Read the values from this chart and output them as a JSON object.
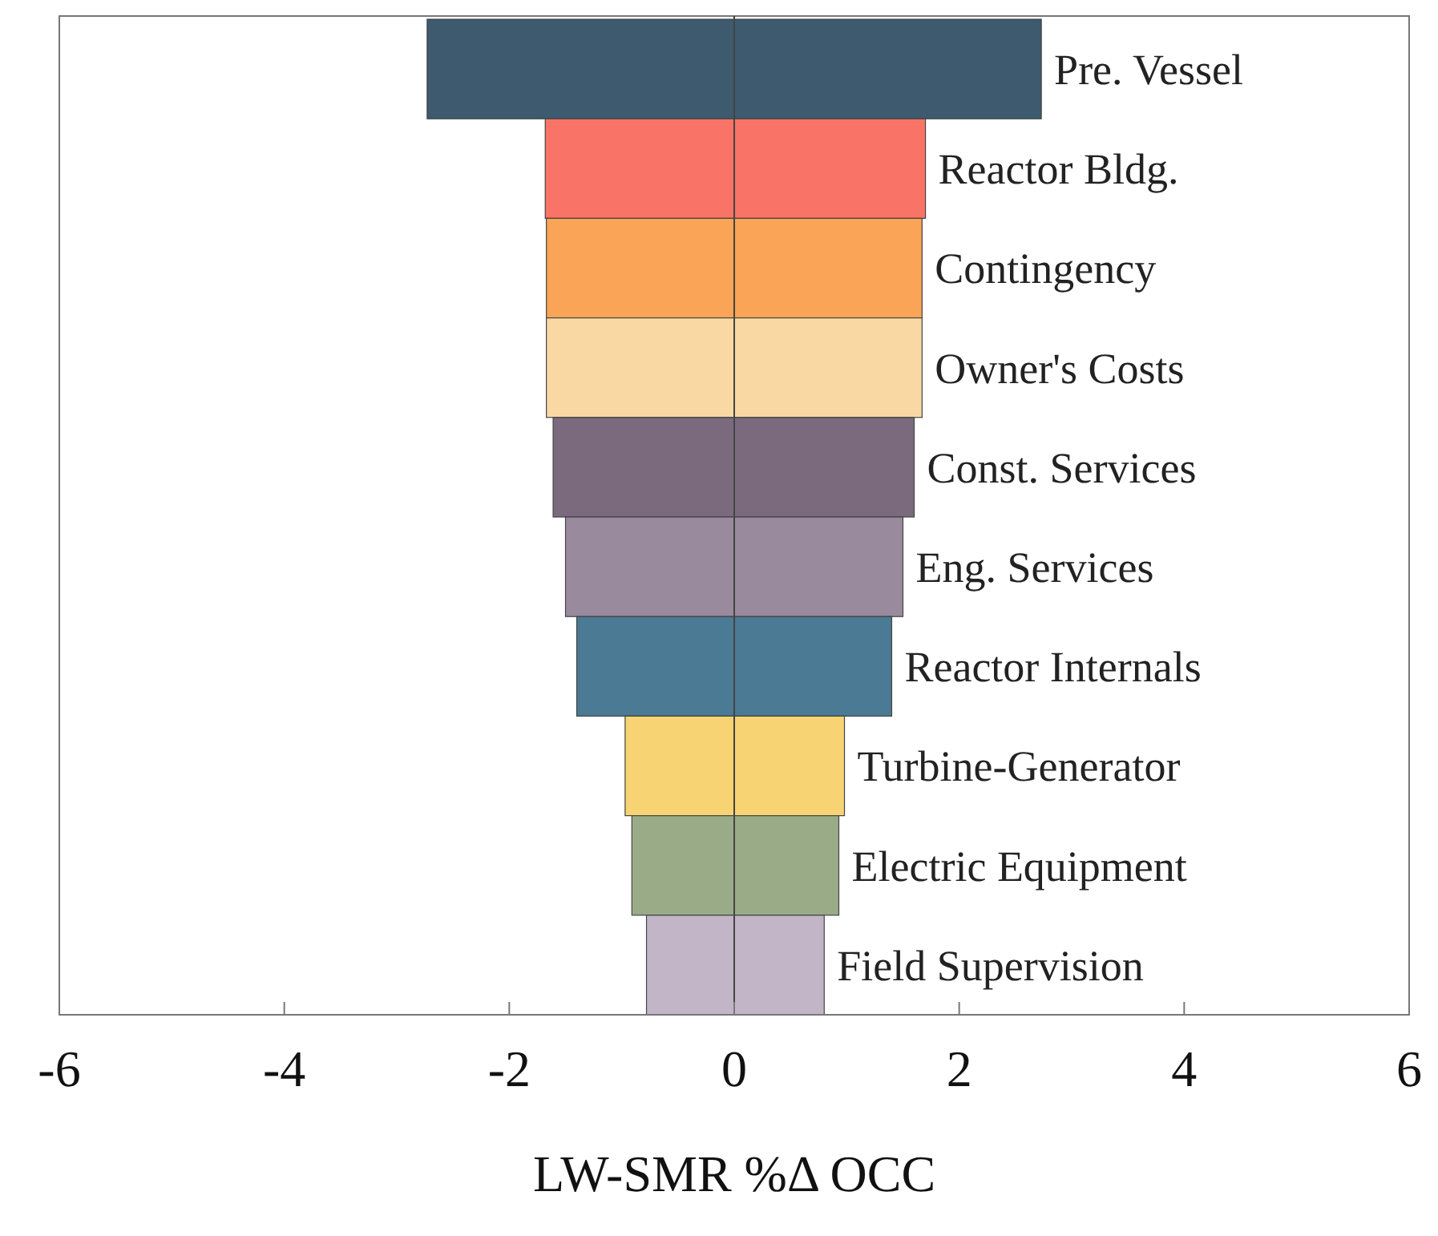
{
  "chart_data": {
    "type": "bar",
    "orientation": "horizontal",
    "xlabel": "LW-SMR %Δ OCC",
    "categories": [
      "Pre. Vessel",
      "Reactor Bldg.",
      "Contingency",
      "Owner's Costs",
      "Const. Services",
      "Eng. Services",
      "Reactor Internals",
      "Turbine-Generator",
      "Electric Equipment",
      "Field Supervision"
    ],
    "base": [
      -2.73,
      -1.68,
      -1.67,
      -1.67,
      -1.61,
      -1.5,
      -1.4,
      -0.97,
      -0.91,
      -0.78
    ],
    "values": [
      5.46,
      3.38,
      3.34,
      3.34,
      3.21,
      3.0,
      2.8,
      1.95,
      1.84,
      1.58
    ],
    "colors": [
      "#3d5a6e",
      "#f97366",
      "#f9a456",
      "#fad8a4",
      "#7b6a7e",
      "#9a8a9e",
      "#4a7a94",
      "#f8d374",
      "#9aab87",
      "#c3b5c8"
    ],
    "xlim": [
      -6,
      6
    ],
    "xticks": [
      -6,
      -4,
      -2,
      0,
      2,
      4,
      6
    ]
  }
}
